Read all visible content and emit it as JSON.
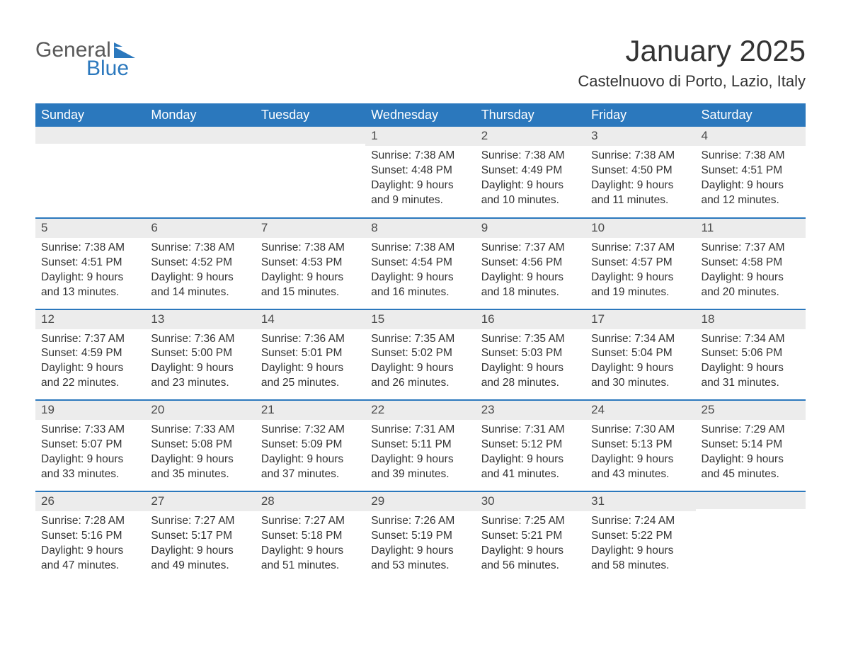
{
  "logo": {
    "part1": "General",
    "part2": "Blue"
  },
  "title": "January 2025",
  "location": "Castelnuovo di Porto, Lazio, Italy",
  "colors": {
    "header_bg": "#2b78bd",
    "header_text": "#ffffff",
    "daynum_bg": "#ececec",
    "text": "#333333",
    "logo_gray": "#595959",
    "logo_blue": "#2b78bd",
    "week_border": "#2b78bd",
    "page_bg": "#ffffff"
  },
  "typography": {
    "title_fontsize": 42,
    "location_fontsize": 22,
    "dayheader_fontsize": 18,
    "cell_fontsize": 15.5,
    "logo_fontsize": 30
  },
  "day_names": [
    "Sunday",
    "Monday",
    "Tuesday",
    "Wednesday",
    "Thursday",
    "Friday",
    "Saturday"
  ],
  "weeks": [
    [
      {
        "num": "",
        "sunrise": "",
        "sunset": "",
        "day1": "",
        "day2": ""
      },
      {
        "num": "",
        "sunrise": "",
        "sunset": "",
        "day1": "",
        "day2": ""
      },
      {
        "num": "",
        "sunrise": "",
        "sunset": "",
        "day1": "",
        "day2": ""
      },
      {
        "num": "1",
        "sunrise": "Sunrise: 7:38 AM",
        "sunset": "Sunset: 4:48 PM",
        "day1": "Daylight: 9 hours",
        "day2": "and 9 minutes."
      },
      {
        "num": "2",
        "sunrise": "Sunrise: 7:38 AM",
        "sunset": "Sunset: 4:49 PM",
        "day1": "Daylight: 9 hours",
        "day2": "and 10 minutes."
      },
      {
        "num": "3",
        "sunrise": "Sunrise: 7:38 AM",
        "sunset": "Sunset: 4:50 PM",
        "day1": "Daylight: 9 hours",
        "day2": "and 11 minutes."
      },
      {
        "num": "4",
        "sunrise": "Sunrise: 7:38 AM",
        "sunset": "Sunset: 4:51 PM",
        "day1": "Daylight: 9 hours",
        "day2": "and 12 minutes."
      }
    ],
    [
      {
        "num": "5",
        "sunrise": "Sunrise: 7:38 AM",
        "sunset": "Sunset: 4:51 PM",
        "day1": "Daylight: 9 hours",
        "day2": "and 13 minutes."
      },
      {
        "num": "6",
        "sunrise": "Sunrise: 7:38 AM",
        "sunset": "Sunset: 4:52 PM",
        "day1": "Daylight: 9 hours",
        "day2": "and 14 minutes."
      },
      {
        "num": "7",
        "sunrise": "Sunrise: 7:38 AM",
        "sunset": "Sunset: 4:53 PM",
        "day1": "Daylight: 9 hours",
        "day2": "and 15 minutes."
      },
      {
        "num": "8",
        "sunrise": "Sunrise: 7:38 AM",
        "sunset": "Sunset: 4:54 PM",
        "day1": "Daylight: 9 hours",
        "day2": "and 16 minutes."
      },
      {
        "num": "9",
        "sunrise": "Sunrise: 7:37 AM",
        "sunset": "Sunset: 4:56 PM",
        "day1": "Daylight: 9 hours",
        "day2": "and 18 minutes."
      },
      {
        "num": "10",
        "sunrise": "Sunrise: 7:37 AM",
        "sunset": "Sunset: 4:57 PM",
        "day1": "Daylight: 9 hours",
        "day2": "and 19 minutes."
      },
      {
        "num": "11",
        "sunrise": "Sunrise: 7:37 AM",
        "sunset": "Sunset: 4:58 PM",
        "day1": "Daylight: 9 hours",
        "day2": "and 20 minutes."
      }
    ],
    [
      {
        "num": "12",
        "sunrise": "Sunrise: 7:37 AM",
        "sunset": "Sunset: 4:59 PM",
        "day1": "Daylight: 9 hours",
        "day2": "and 22 minutes."
      },
      {
        "num": "13",
        "sunrise": "Sunrise: 7:36 AM",
        "sunset": "Sunset: 5:00 PM",
        "day1": "Daylight: 9 hours",
        "day2": "and 23 minutes."
      },
      {
        "num": "14",
        "sunrise": "Sunrise: 7:36 AM",
        "sunset": "Sunset: 5:01 PM",
        "day1": "Daylight: 9 hours",
        "day2": "and 25 minutes."
      },
      {
        "num": "15",
        "sunrise": "Sunrise: 7:35 AM",
        "sunset": "Sunset: 5:02 PM",
        "day1": "Daylight: 9 hours",
        "day2": "and 26 minutes."
      },
      {
        "num": "16",
        "sunrise": "Sunrise: 7:35 AM",
        "sunset": "Sunset: 5:03 PM",
        "day1": "Daylight: 9 hours",
        "day2": "and 28 minutes."
      },
      {
        "num": "17",
        "sunrise": "Sunrise: 7:34 AM",
        "sunset": "Sunset: 5:04 PM",
        "day1": "Daylight: 9 hours",
        "day2": "and 30 minutes."
      },
      {
        "num": "18",
        "sunrise": "Sunrise: 7:34 AM",
        "sunset": "Sunset: 5:06 PM",
        "day1": "Daylight: 9 hours",
        "day2": "and 31 minutes."
      }
    ],
    [
      {
        "num": "19",
        "sunrise": "Sunrise: 7:33 AM",
        "sunset": "Sunset: 5:07 PM",
        "day1": "Daylight: 9 hours",
        "day2": "and 33 minutes."
      },
      {
        "num": "20",
        "sunrise": "Sunrise: 7:33 AM",
        "sunset": "Sunset: 5:08 PM",
        "day1": "Daylight: 9 hours",
        "day2": "and 35 minutes."
      },
      {
        "num": "21",
        "sunrise": "Sunrise: 7:32 AM",
        "sunset": "Sunset: 5:09 PM",
        "day1": "Daylight: 9 hours",
        "day2": "and 37 minutes."
      },
      {
        "num": "22",
        "sunrise": "Sunrise: 7:31 AM",
        "sunset": "Sunset: 5:11 PM",
        "day1": "Daylight: 9 hours",
        "day2": "and 39 minutes."
      },
      {
        "num": "23",
        "sunrise": "Sunrise: 7:31 AM",
        "sunset": "Sunset: 5:12 PM",
        "day1": "Daylight: 9 hours",
        "day2": "and 41 minutes."
      },
      {
        "num": "24",
        "sunrise": "Sunrise: 7:30 AM",
        "sunset": "Sunset: 5:13 PM",
        "day1": "Daylight: 9 hours",
        "day2": "and 43 minutes."
      },
      {
        "num": "25",
        "sunrise": "Sunrise: 7:29 AM",
        "sunset": "Sunset: 5:14 PM",
        "day1": "Daylight: 9 hours",
        "day2": "and 45 minutes."
      }
    ],
    [
      {
        "num": "26",
        "sunrise": "Sunrise: 7:28 AM",
        "sunset": "Sunset: 5:16 PM",
        "day1": "Daylight: 9 hours",
        "day2": "and 47 minutes."
      },
      {
        "num": "27",
        "sunrise": "Sunrise: 7:27 AM",
        "sunset": "Sunset: 5:17 PM",
        "day1": "Daylight: 9 hours",
        "day2": "and 49 minutes."
      },
      {
        "num": "28",
        "sunrise": "Sunrise: 7:27 AM",
        "sunset": "Sunset: 5:18 PM",
        "day1": "Daylight: 9 hours",
        "day2": "and 51 minutes."
      },
      {
        "num": "29",
        "sunrise": "Sunrise: 7:26 AM",
        "sunset": "Sunset: 5:19 PM",
        "day1": "Daylight: 9 hours",
        "day2": "and 53 minutes."
      },
      {
        "num": "30",
        "sunrise": "Sunrise: 7:25 AM",
        "sunset": "Sunset: 5:21 PM",
        "day1": "Daylight: 9 hours",
        "day2": "and 56 minutes."
      },
      {
        "num": "31",
        "sunrise": "Sunrise: 7:24 AM",
        "sunset": "Sunset: 5:22 PM",
        "day1": "Daylight: 9 hours",
        "day2": "and 58 minutes."
      },
      {
        "num": "",
        "sunrise": "",
        "sunset": "",
        "day1": "",
        "day2": ""
      }
    ]
  ]
}
